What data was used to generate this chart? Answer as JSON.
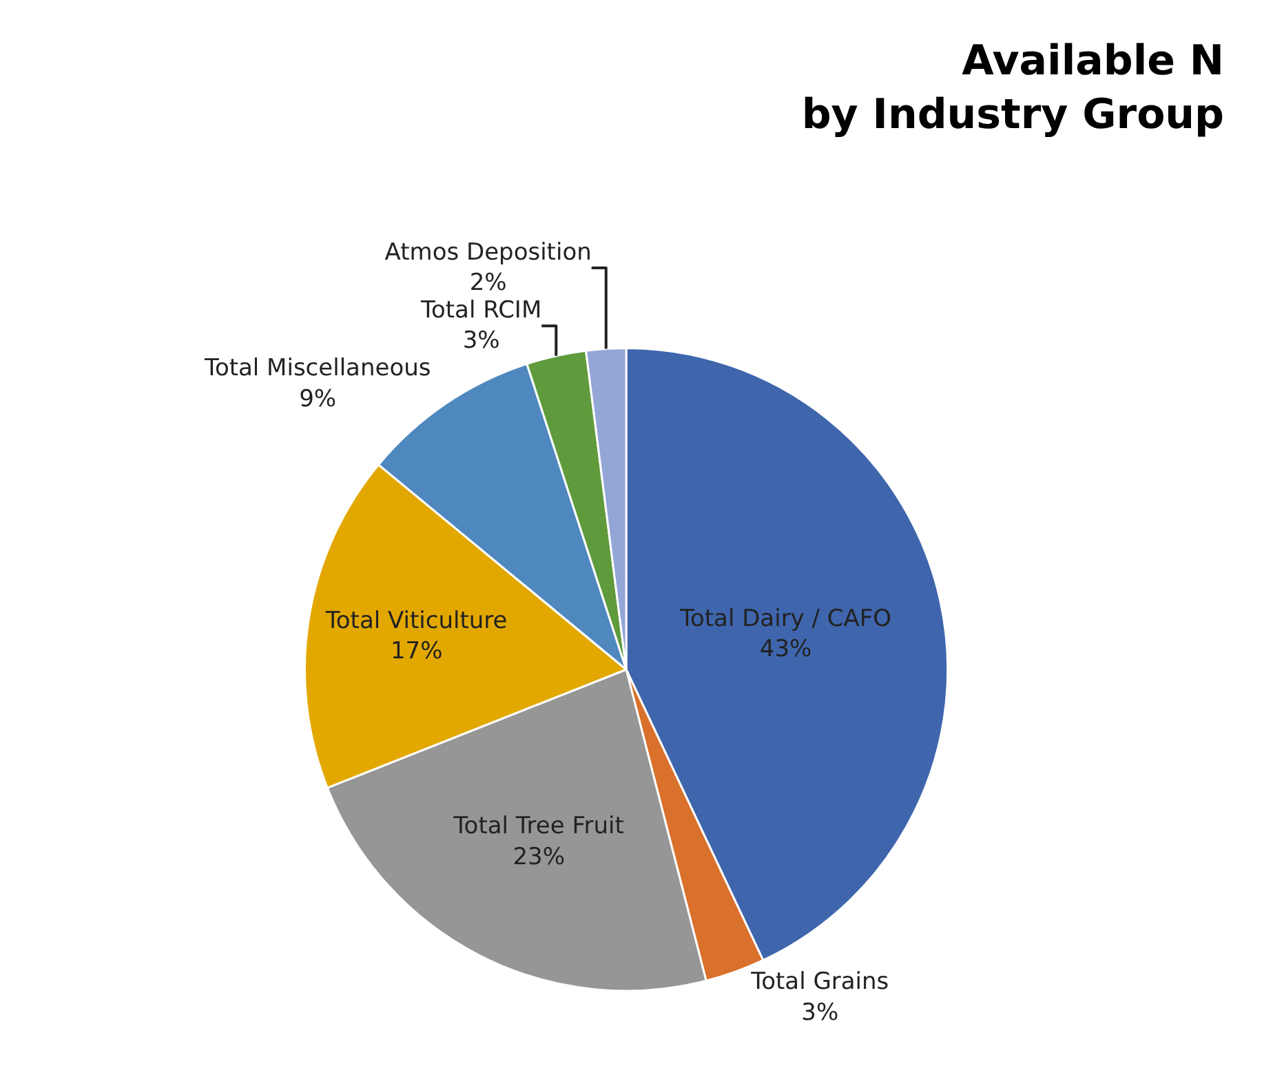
{
  "chart_data": {
    "type": "pie",
    "title": "Available N by Industry Group",
    "categories": [
      "Total Dairy / CAFO",
      "Total Grains",
      "Total Tree Fruit",
      "Total Viticulture",
      "Total Miscellaneous",
      "Total RCIM",
      "Atmos Deposition"
    ],
    "values": [
      43,
      3,
      23,
      17,
      9,
      3,
      2
    ],
    "value_labels": [
      "43%",
      "3%",
      "23%",
      "17%",
      "9%",
      "3%",
      "2%"
    ],
    "colors": [
      "#3f66ad",
      "#d9702b",
      "#969696",
      "#e3a800",
      "#4f88bf",
      "#5f9a3c",
      "#94a6d6"
    ],
    "legend": false
  }
}
